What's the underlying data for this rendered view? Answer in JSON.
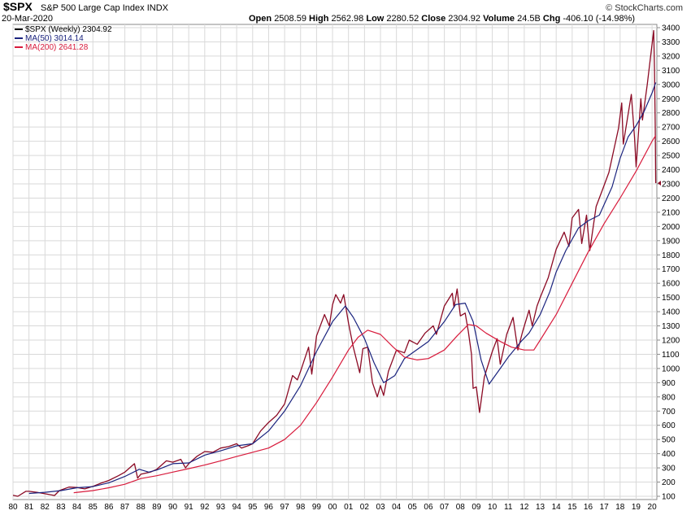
{
  "header": {
    "symbol": "$SPX",
    "name": "S&P 500 Large Cap Index",
    "exchange": "INDX",
    "date": "20-Mar-2020",
    "open_label": "Open",
    "open": "2508.59",
    "high_label": "High",
    "high": "2562.98",
    "low_label": "Low",
    "low": "2280.52",
    "close_label": "Close",
    "close": "2304.92",
    "volume_label": "Volume",
    "volume": "24.5B",
    "chg_label": "Chg",
    "chg": "-406.10 (-14.98%)",
    "brand": "© StockCharts.com"
  },
  "legend": {
    "price": "$SPX (Weekly) 2304.92",
    "ma50": "MA(50) 3014.14",
    "ma200": "MA(200) 2641.28"
  },
  "colors": {
    "price": "#8b0a24",
    "ma50": "#1a237e",
    "ma200": "#d81b3c",
    "grid": "#d9d9d9"
  },
  "chart_data": {
    "type": "line",
    "title": "$SPX S&P 500 Large Cap Index INDX",
    "xlabel": "",
    "ylabel": "",
    "xlim": [
      1980,
      2020.3
    ],
    "ylim": [
      100,
      3400
    ],
    "x_ticks": [
      "80",
      "81",
      "82",
      "83",
      "84",
      "85",
      "86",
      "87",
      "88",
      "89",
      "90",
      "91",
      "92",
      "93",
      "94",
      "95",
      "96",
      "97",
      "98",
      "99",
      "00",
      "01",
      "02",
      "03",
      "04",
      "05",
      "06",
      "07",
      "08",
      "09",
      "10",
      "11",
      "12",
      "13",
      "14",
      "15",
      "16",
      "17",
      "18",
      "19",
      "20"
    ],
    "y_ticks": [
      100,
      200,
      300,
      400,
      500,
      600,
      700,
      800,
      900,
      1000,
      1100,
      1200,
      1300,
      1400,
      1500,
      1600,
      1700,
      1800,
      1900,
      2000,
      2100,
      2200,
      2300,
      2400,
      2500,
      2600,
      2700,
      2800,
      2900,
      3000,
      3100,
      3200,
      3300,
      3400
    ],
    "series": [
      {
        "name": "$SPX (Weekly)",
        "points": [
          [
            1980,
            107
          ],
          [
            1980.3,
            100
          ],
          [
            1980.8,
            135
          ],
          [
            1981,
            135
          ],
          [
            1981.5,
            128
          ],
          [
            1982,
            118
          ],
          [
            1982.6,
            106
          ],
          [
            1982.9,
            140
          ],
          [
            1983.5,
            165
          ],
          [
            1984,
            162
          ],
          [
            1984.5,
            152
          ],
          [
            1985,
            170
          ],
          [
            1985.5,
            192
          ],
          [
            1986,
            212
          ],
          [
            1986.6,
            245
          ],
          [
            1987,
            270
          ],
          [
            1987.6,
            330
          ],
          [
            1987.8,
            228
          ],
          [
            1988,
            255
          ],
          [
            1988.6,
            270
          ],
          [
            1989,
            290
          ],
          [
            1989.6,
            350
          ],
          [
            1990,
            340
          ],
          [
            1990.5,
            360
          ],
          [
            1990.8,
            300
          ],
          [
            1991,
            330
          ],
          [
            1991.5,
            380
          ],
          [
            1992,
            415
          ],
          [
            1992.5,
            410
          ],
          [
            1993,
            440
          ],
          [
            1993.5,
            450
          ],
          [
            1994,
            470
          ],
          [
            1994.3,
            440
          ],
          [
            1994.8,
            460
          ],
          [
            1995,
            470
          ],
          [
            1995.5,
            560
          ],
          [
            1996,
            620
          ],
          [
            1996.5,
            670
          ],
          [
            1997,
            750
          ],
          [
            1997.5,
            950
          ],
          [
            1997.8,
            920
          ],
          [
            1998,
            980
          ],
          [
            1998.5,
            1150
          ],
          [
            1998.7,
            960
          ],
          [
            1999,
            1230
          ],
          [
            1999.5,
            1380
          ],
          [
            1999.8,
            1300
          ],
          [
            2000,
            1450
          ],
          [
            2000.2,
            1520
          ],
          [
            2000.5,
            1460
          ],
          [
            2000.7,
            1520
          ],
          [
            2001,
            1320
          ],
          [
            2001.3,
            1150
          ],
          [
            2001.7,
            970
          ],
          [
            2001.9,
            1140
          ],
          [
            2002.2,
            1150
          ],
          [
            2002.5,
            900
          ],
          [
            2002.8,
            800
          ],
          [
            2003,
            880
          ],
          [
            2003.2,
            810
          ],
          [
            2003.5,
            980
          ],
          [
            2004,
            1130
          ],
          [
            2004.5,
            1110
          ],
          [
            2004.8,
            1200
          ],
          [
            2005.3,
            1170
          ],
          [
            2005.8,
            1250
          ],
          [
            2006.3,
            1300
          ],
          [
            2006.5,
            1240
          ],
          [
            2007,
            1440
          ],
          [
            2007.5,
            1530
          ],
          [
            2007.6,
            1430
          ],
          [
            2007.8,
            1560
          ],
          [
            2008,
            1370
          ],
          [
            2008.3,
            1390
          ],
          [
            2008.5,
            1260
          ],
          [
            2008.7,
            1100
          ],
          [
            2008.8,
            860
          ],
          [
            2009,
            870
          ],
          [
            2009.2,
            690
          ],
          [
            2009.5,
            940
          ],
          [
            2010,
            1120
          ],
          [
            2010.3,
            1210
          ],
          [
            2010.5,
            1030
          ],
          [
            2010.9,
            1240
          ],
          [
            2011.3,
            1360
          ],
          [
            2011.6,
            1130
          ],
          [
            2011.9,
            1260
          ],
          [
            2012.3,
            1410
          ],
          [
            2012.5,
            1300
          ],
          [
            2012.8,
            1440
          ],
          [
            2013,
            1500
          ],
          [
            2013.5,
            1640
          ],
          [
            2014,
            1840
          ],
          [
            2014.5,
            1960
          ],
          [
            2014.8,
            1860
          ],
          [
            2015,
            2060
          ],
          [
            2015.4,
            2120
          ],
          [
            2015.6,
            1880
          ],
          [
            2015.9,
            2080
          ],
          [
            2016.1,
            1830
          ],
          [
            2016.5,
            2140
          ],
          [
            2016.9,
            2260
          ],
          [
            2017.3,
            2380
          ],
          [
            2017.9,
            2690
          ],
          [
            2018.1,
            2870
          ],
          [
            2018.2,
            2580
          ],
          [
            2018.7,
            2930
          ],
          [
            2018.9,
            2630
          ],
          [
            2019,
            2420
          ],
          [
            2019.3,
            2900
          ],
          [
            2019.4,
            2750
          ],
          [
            2019.7,
            3000
          ],
          [
            2020.1,
            3380
          ],
          [
            2020.15,
            3100
          ],
          [
            2020.2,
            2710
          ],
          [
            2020.23,
            2305
          ]
        ]
      },
      {
        "name": "MA(50)",
        "points": [
          [
            1981,
            120
          ],
          [
            1982,
            128
          ],
          [
            1983,
            140
          ],
          [
            1984,
            160
          ],
          [
            1985,
            168
          ],
          [
            1986,
            195
          ],
          [
            1987,
            240
          ],
          [
            1987.9,
            290
          ],
          [
            1988.5,
            270
          ],
          [
            1989,
            285
          ],
          [
            1990,
            330
          ],
          [
            1991,
            335
          ],
          [
            1992,
            390
          ],
          [
            1993,
            420
          ],
          [
            1994,
            455
          ],
          [
            1995,
            470
          ],
          [
            1996,
            560
          ],
          [
            1997,
            700
          ],
          [
            1998,
            880
          ],
          [
            1999,
            1120
          ],
          [
            2000,
            1330
          ],
          [
            2000.8,
            1440
          ],
          [
            2001.3,
            1360
          ],
          [
            2002,
            1210
          ],
          [
            2002.6,
            1040
          ],
          [
            2003.2,
            900
          ],
          [
            2003.9,
            950
          ],
          [
            2004.5,
            1070
          ],
          [
            2005,
            1110
          ],
          [
            2006,
            1190
          ],
          [
            2007,
            1330
          ],
          [
            2007.7,
            1450
          ],
          [
            2008.3,
            1460
          ],
          [
            2008.8,
            1330
          ],
          [
            2009.3,
            1060
          ],
          [
            2009.8,
            890
          ],
          [
            2010.5,
            1000
          ],
          [
            2011,
            1080
          ],
          [
            2011.8,
            1190
          ],
          [
            2012.3,
            1250
          ],
          [
            2013,
            1380
          ],
          [
            2013.6,
            1540
          ],
          [
            2014,
            1680
          ],
          [
            2014.6,
            1830
          ],
          [
            2015.4,
            1990
          ],
          [
            2016,
            2040
          ],
          [
            2016.7,
            2080
          ],
          [
            2017.5,
            2280
          ],
          [
            2018,
            2480
          ],
          [
            2018.5,
            2630
          ],
          [
            2019,
            2710
          ],
          [
            2019.5,
            2810
          ],
          [
            2020,
            2940
          ],
          [
            2020.23,
            3014
          ]
        ]
      },
      {
        "name": "MA(200)",
        "points": [
          [
            1983.8,
            125
          ],
          [
            1985,
            140
          ],
          [
            1986,
            160
          ],
          [
            1987,
            185
          ],
          [
            1988,
            225
          ],
          [
            1989,
            245
          ],
          [
            1990,
            270
          ],
          [
            1991,
            295
          ],
          [
            1992,
            320
          ],
          [
            1993,
            350
          ],
          [
            1994,
            380
          ],
          [
            1995,
            410
          ],
          [
            1996,
            440
          ],
          [
            1997,
            500
          ],
          [
            1998,
            600
          ],
          [
            1999,
            760
          ],
          [
            2000,
            940
          ],
          [
            2001,
            1130
          ],
          [
            2001.6,
            1220
          ],
          [
            2002.2,
            1270
          ],
          [
            2003,
            1240
          ],
          [
            2003.8,
            1150
          ],
          [
            2004.5,
            1080
          ],
          [
            2005.3,
            1060
          ],
          [
            2006,
            1070
          ],
          [
            2007,
            1130
          ],
          [
            2007.8,
            1230
          ],
          [
            2008.5,
            1310
          ],
          [
            2009,
            1300
          ],
          [
            2009.6,
            1250
          ],
          [
            2010.5,
            1190
          ],
          [
            2011.2,
            1150
          ],
          [
            2012,
            1130
          ],
          [
            2012.6,
            1130
          ],
          [
            2013,
            1200
          ],
          [
            2014,
            1380
          ],
          [
            2015,
            1600
          ],
          [
            2016,
            1820
          ],
          [
            2017,
            2020
          ],
          [
            2018,
            2200
          ],
          [
            2019,
            2390
          ],
          [
            2020,
            2600
          ],
          [
            2020.23,
            2641
          ]
        ]
      }
    ]
  }
}
